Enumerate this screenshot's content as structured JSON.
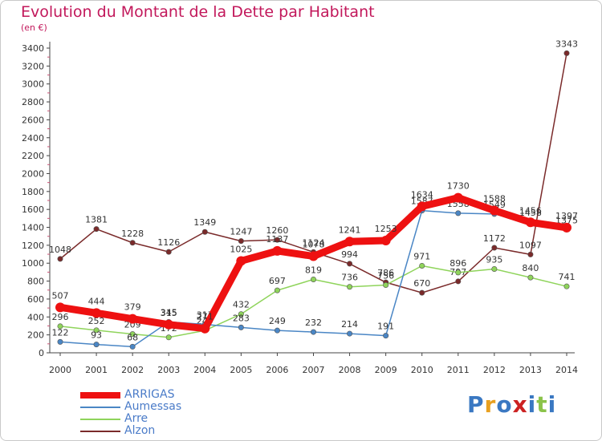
{
  "chart_data": {
    "type": "line",
    "title": "Evolution du Montant de la Dette par Habitant",
    "unit": "(en €)",
    "x": [
      "2000",
      "2001",
      "2002",
      "2003",
      "2004",
      "2005",
      "2006",
      "2007",
      "2008",
      "2009",
      "2010",
      "2011",
      "2012",
      "2013",
      "2014"
    ],
    "ylim": [
      0,
      3400
    ],
    "yticks": [
      0,
      200,
      400,
      600,
      800,
      1000,
      1200,
      1400,
      1600,
      1800,
      2000,
      2200,
      2400,
      2600,
      2800,
      3000,
      3200,
      3400
    ],
    "grid": false,
    "legend_position": "bottom-left",
    "series": [
      {
        "name": "ARRIGAS",
        "color": "#ee1111",
        "values": [
          507,
          444,
          379,
          315,
          271,
          1025,
          1137,
          1078,
          1241,
          1253,
          1634,
          1730,
          1588,
          1456,
          1397
        ],
        "labels": [
          "507",
          "444",
          "379",
          "315",
          "271",
          "1025",
          "1137",
          "1078",
          "1241",
          "1253",
          "1634",
          "1730",
          "1588",
          "1456",
          "1397"
        ]
      },
      {
        "name": "Aumessas",
        "color": "#4a86c5",
        "values": [
          122,
          93,
          68,
          345,
          317,
          283,
          249,
          232,
          214,
          191,
          1587,
          1558,
          1549,
          1458,
          1375
        ],
        "labels": [
          "122",
          "93",
          "68",
          "345",
          "317",
          "283",
          "249",
          "232",
          "214",
          "191",
          "1587",
          "1558",
          "1549",
          "1458",
          "1375"
        ]
      },
      {
        "name": "Arre",
        "color": "#8fd45b",
        "values": [
          296,
          252,
          209,
          172,
          249,
          432,
          697,
          819,
          736,
          756,
          971,
          896,
          935,
          840,
          741
        ],
        "labels": [
          "296",
          "252",
          "209",
          "172",
          "249",
          "432",
          "697",
          "819",
          "736",
          "756",
          "971",
          "896",
          "935",
          "840",
          "741"
        ]
      },
      {
        "name": "Alzon",
        "color": "#7a2a2a",
        "values": [
          1048,
          1381,
          1228,
          1126,
          1349,
          1247,
          1260,
          1124,
          994,
          786,
          670,
          797,
          1172,
          1097,
          3343
        ],
        "labels": [
          "1048",
          "1381",
          "1228",
          "1126",
          "1349",
          "1247",
          "1260",
          "1124",
          "994",
          "786",
          "670",
          "797",
          "1172",
          "1097",
          "3343"
        ]
      }
    ]
  },
  "brand": {
    "letters": [
      "P",
      "r",
      "o",
      "x",
      "i",
      "t",
      "i"
    ],
    "colors": [
      "#3a78c2",
      "#e8a020",
      "#3a78c2",
      "#cc2222",
      "#3a78c2",
      "#8bc34a",
      "#3a78c2"
    ]
  }
}
